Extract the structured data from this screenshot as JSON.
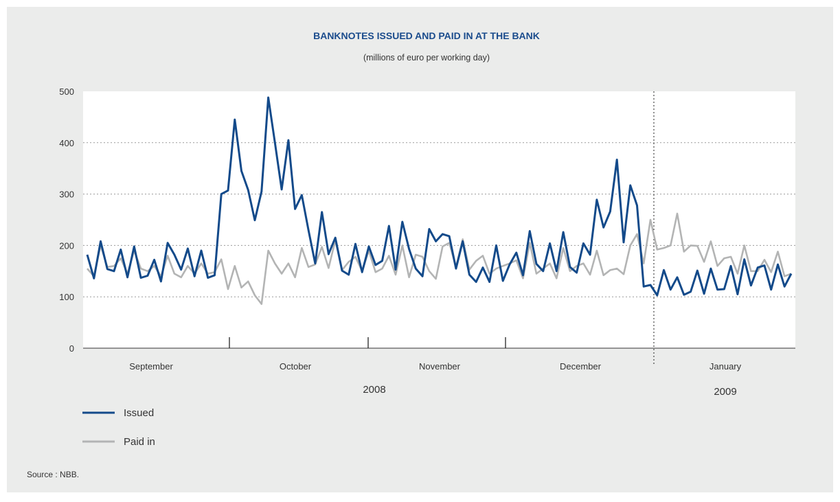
{
  "chart_data": {
    "type": "line",
    "title": "BANKNOTES ISSUED AND PAID IN AT THE BANK",
    "subtitle": "(millions of euro per working day)",
    "ylim": [
      0,
      500
    ],
    "yticks": [
      0,
      100,
      200,
      300,
      400,
      500
    ],
    "grid": true,
    "months": [
      "September",
      "October",
      "November",
      "December",
      "January"
    ],
    "years": [
      "2008",
      "2009"
    ],
    "source": "Source : NBB.",
    "series": [
      {
        "name": "Issued",
        "color": "#134a8a",
        "values": [
          182,
          136,
          208,
          154,
          150,
          192,
          138,
          198,
          137,
          141,
          172,
          130,
          205,
          182,
          153,
          194,
          140,
          190,
          137,
          142,
          300,
          307,
          445,
          345,
          308,
          249,
          305,
          488,
          400,
          309,
          405,
          271,
          298,
          230,
          165,
          265,
          183,
          215,
          151,
          143,
          203,
          148,
          198,
          162,
          170,
          238,
          153,
          246,
          193,
          155,
          140,
          232,
          208,
          222,
          218,
          155,
          208,
          143,
          129,
          157,
          129,
          200,
          131,
          163,
          186,
          142,
          228,
          164,
          150,
          204,
          150,
          226,
          158,
          147,
          204,
          182,
          289,
          235,
          266,
          367,
          206,
          317,
          278,
          120,
          123,
          103,
          152,
          114,
          138,
          104,
          110,
          151,
          106,
          155,
          114,
          115,
          160,
          105,
          173,
          122,
          157,
          161,
          114,
          163,
          120,
          145
        ]
      },
      {
        "name": "Paid in",
        "color": "#b3b4b4",
        "values": [
          155,
          140,
          200,
          158,
          160,
          175,
          145,
          190,
          155,
          150,
          160,
          140,
          180,
          145,
          138,
          160,
          145,
          165,
          145,
          148,
          173,
          115,
          160,
          118,
          130,
          103,
          86,
          190,
          165,
          145,
          165,
          138,
          195,
          158,
          163,
          197,
          156,
          210,
          152,
          168,
          178,
          150,
          190,
          148,
          155,
          180,
          143,
          200,
          138,
          182,
          178,
          150,
          135,
          198,
          205,
          158,
          212,
          153,
          170,
          180,
          145,
          155,
          160,
          165,
          171,
          136,
          205,
          145,
          155,
          165,
          136,
          195,
          150,
          160,
          165,
          143,
          190,
          142,
          152,
          155,
          144,
          200,
          222,
          165,
          250,
          192,
          195,
          200,
          262,
          188,
          200,
          199,
          168,
          208,
          160,
          175,
          178,
          145,
          200,
          150,
          150,
          172,
          148,
          188,
          140,
          145
        ]
      }
    ]
  }
}
